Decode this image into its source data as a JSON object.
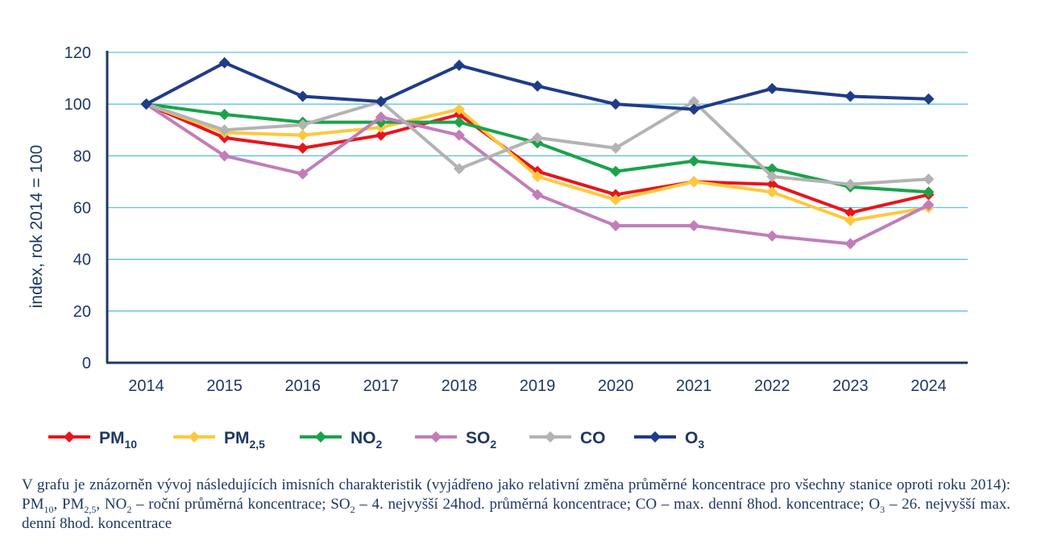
{
  "chart_data": {
    "type": "line",
    "title": "",
    "xlabel": "",
    "ylabel": "index, rok 2014 = 100",
    "ylim": [
      0,
      120
    ],
    "yticks": [
      0,
      20,
      40,
      60,
      80,
      100,
      120
    ],
    "grid": true,
    "legend_position": "bottom",
    "categories": [
      "2014",
      "2015",
      "2016",
      "2017",
      "2018",
      "2019",
      "2020",
      "2021",
      "2022",
      "2023",
      "2024"
    ],
    "series": [
      {
        "key": "pm10",
        "name": "PM",
        "sub": "10",
        "color": "#e8141c",
        "values": [
          100,
          87,
          83,
          88,
          96,
          74,
          65,
          70,
          69,
          58,
          65
        ]
      },
      {
        "key": "pm25",
        "name": "PM",
        "sub": "2,5",
        "color": "#ffc83c",
        "values": [
          100,
          89,
          88,
          91,
          98,
          72,
          63,
          70,
          66,
          55,
          60
        ]
      },
      {
        "key": "no2",
        "name": "NO",
        "sub": "2",
        "color": "#1aa34a",
        "values": [
          100,
          96,
          93,
          93,
          93,
          85,
          74,
          78,
          75,
          68,
          66
        ]
      },
      {
        "key": "so2",
        "name": "SO",
        "sub": "2",
        "color": "#c27db9",
        "values": [
          100,
          80,
          73,
          95,
          88,
          65,
          53,
          53,
          49,
          46,
          61
        ]
      },
      {
        "key": "co",
        "name": "CO",
        "sub": "",
        "color": "#b3b3b3",
        "values": [
          100,
          90,
          92,
          101,
          75,
          87,
          83,
          101,
          72,
          69,
          71
        ]
      },
      {
        "key": "o3",
        "name": "O",
        "sub": "3",
        "color": "#1f3c88",
        "values": [
          100,
          116,
          103,
          101,
          115,
          107,
          100,
          98,
          106,
          103,
          102
        ]
      }
    ]
  },
  "caption": {
    "text1": "V grafu je znázorněn vývoj následujících imisních charakteristik (vyjádřeno jako relativní změna průměrné koncentrace pro všechny stanice oproti roku 2014): PM",
    "sub1": "10",
    "text2": ", PM",
    "sub2": "2,5",
    "text3": ", NO",
    "sub3": "2",
    "text4": " – roční průměrná koncentrace; SO",
    "sub4": "2",
    "text5": " – 4. nejvyšší 24hod. průměrná koncentrace; CO – max. denní 8hod. koncentrace; O",
    "sub5": "3",
    "text6": " – 26. nejvyšší max. denní 8hod. koncentrace"
  }
}
